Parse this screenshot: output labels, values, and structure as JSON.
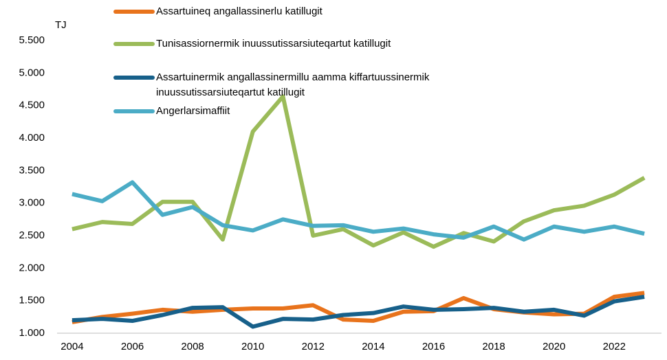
{
  "chart_data": {
    "type": "line",
    "y_unit": "TJ",
    "x": [
      2004,
      2005,
      2006,
      2007,
      2008,
      2009,
      2010,
      2011,
      2012,
      2013,
      2014,
      2015,
      2016,
      2017,
      2018,
      2019,
      2020,
      2021,
      2022,
      2023
    ],
    "xlim": [
      2003.5,
      2023.5
    ],
    "xticks": [
      2004,
      2006,
      2008,
      2010,
      2012,
      2014,
      2016,
      2018,
      2020,
      2022
    ],
    "ylim": [
      1000,
      5500
    ],
    "yticks": [
      {
        "value": 1000,
        "label": "1.000"
      },
      {
        "value": 1500,
        "label": "1.500"
      },
      {
        "value": 2000,
        "label": "2.000"
      },
      {
        "value": 2500,
        "label": "2.500"
      },
      {
        "value": 3000,
        "label": "3.000"
      },
      {
        "value": 3500,
        "label": "3.500"
      },
      {
        "value": 4000,
        "label": "4.000"
      },
      {
        "value": 4500,
        "label": "4.500"
      },
      {
        "value": 5000,
        "label": "5.000"
      },
      {
        "value": 5500,
        "label": "5.500"
      }
    ],
    "grid": false,
    "series": [
      {
        "name": "Assartuineq angallassinerlu katillugit",
        "color": "#e8731c",
        "values": [
          1170,
          1250,
          1300,
          1360,
          1330,
          1360,
          1380,
          1380,
          1430,
          1210,
          1190,
          1330,
          1340,
          1540,
          1370,
          1320,
          1290,
          1300,
          1560,
          1620
        ]
      },
      {
        "name": "Tunisassiornermik inuussutissarsiuteqartut katillugit",
        "color": "#9bbb59",
        "values": [
          2600,
          2710,
          2680,
          3020,
          3020,
          2440,
          4100,
          4640,
          2500,
          2600,
          2350,
          2550,
          2330,
          2540,
          2410,
          2720,
          2890,
          2960,
          3130,
          3390
        ]
      },
      {
        "name": "Assartuinermik angallassinermillu aamma kiffartuussinermik inuussutissarsiuteqartut katillugit",
        "color": "#17608a",
        "values": [
          1200,
          1220,
          1190,
          1280,
          1390,
          1400,
          1100,
          1220,
          1210,
          1280,
          1310,
          1410,
          1360,
          1370,
          1390,
          1330,
          1360,
          1270,
          1490,
          1560
        ]
      },
      {
        "name": "Angerlarsimaffiit",
        "color": "#4bacc6",
        "values": [
          3140,
          3030,
          3320,
          2820,
          2940,
          2660,
          2580,
          2750,
          2650,
          2660,
          2560,
          2610,
          2520,
          2470,
          2640,
          2440,
          2640,
          2560,
          2640,
          2530
        ]
      }
    ]
  }
}
